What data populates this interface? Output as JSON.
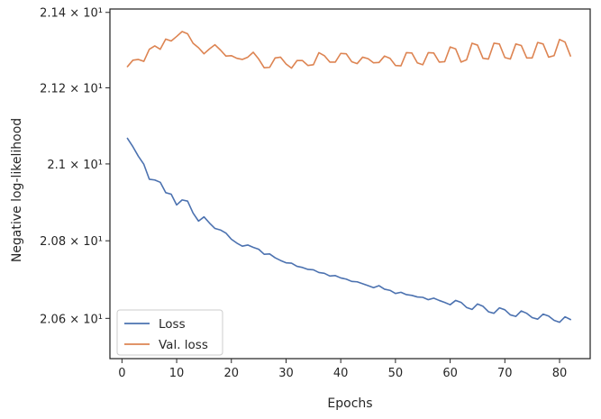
{
  "chart_data": {
    "type": "line",
    "xlabel": "Epochs",
    "ylabel": "Negative log-likelihood",
    "y_scale": "log",
    "xlim": [
      -2.2,
      85.6
    ],
    "ylim": [
      20.497,
      21.409
    ],
    "x_ticks": [
      0,
      10,
      20,
      30,
      40,
      50,
      60,
      70,
      80
    ],
    "y_ticks": [
      {
        "value": 20.6,
        "label": "2.06 × 10¹"
      },
      {
        "value": 20.8,
        "label": "2.08 × 10¹"
      },
      {
        "value": 21.0,
        "label": "2.1 × 10¹"
      },
      {
        "value": 21.2,
        "label": "2.12 × 10¹"
      },
      {
        "value": 21.4,
        "label": "2.14 × 10¹"
      }
    ],
    "grid": false,
    "legend_position": "lower-left",
    "x": [
      1,
      2,
      3,
      4,
      5,
      6,
      7,
      8,
      9,
      10,
      11,
      12,
      13,
      14,
      15,
      16,
      17,
      18,
      19,
      20,
      21,
      22,
      23,
      24,
      25,
      26,
      27,
      28,
      29,
      30,
      31,
      32,
      33,
      34,
      35,
      36,
      37,
      38,
      39,
      40,
      41,
      42,
      43,
      44,
      45,
      46,
      47,
      48,
      49,
      50,
      51,
      52,
      53,
      54,
      55,
      56,
      57,
      58,
      59,
      60,
      61,
      62,
      63,
      64,
      65,
      66,
      67,
      68,
      69,
      70,
      71,
      72,
      73,
      74,
      75,
      76,
      77,
      78,
      79,
      80,
      81,
      82
    ],
    "series": [
      {
        "name": "Loss",
        "color": "#4c72b0",
        "values": [
          21.067,
          21.045,
          21.02,
          20.999,
          20.96,
          20.958,
          20.952,
          20.925,
          20.921,
          20.893,
          20.906,
          20.903,
          20.872,
          20.851,
          20.862,
          20.846,
          20.832,
          20.828,
          20.82,
          20.804,
          20.794,
          20.786,
          20.789,
          20.783,
          20.778,
          20.765,
          20.766,
          20.756,
          20.749,
          20.743,
          20.742,
          20.734,
          20.731,
          20.726,
          20.725,
          20.718,
          20.716,
          20.709,
          20.71,
          20.704,
          20.701,
          20.695,
          20.694,
          20.689,
          20.684,
          20.679,
          20.684,
          20.675,
          20.672,
          20.664,
          20.667,
          20.661,
          20.659,
          20.655,
          20.654,
          20.648,
          20.652,
          20.646,
          20.641,
          20.635,
          20.646,
          20.641,
          20.628,
          20.623,
          20.637,
          20.631,
          20.617,
          20.613,
          20.627,
          20.622,
          20.609,
          20.605,
          20.619,
          20.613,
          20.602,
          20.598,
          20.611,
          20.606,
          20.595,
          20.59,
          20.604,
          20.597
        ]
      },
      {
        "name": "Val. loss",
        "color": "#dd8452",
        "values": [
          21.256,
          21.273,
          21.275,
          21.27,
          21.302,
          21.311,
          21.302,
          21.329,
          21.324,
          21.336,
          21.349,
          21.343,
          21.318,
          21.306,
          21.29,
          21.303,
          21.314,
          21.3,
          21.284,
          21.285,
          21.278,
          21.275,
          21.281,
          21.294,
          21.276,
          21.253,
          21.254,
          21.279,
          21.281,
          21.263,
          21.252,
          21.272,
          21.272,
          21.259,
          21.261,
          21.293,
          21.285,
          21.268,
          21.268,
          21.291,
          21.29,
          21.269,
          21.264,
          21.281,
          21.277,
          21.266,
          21.267,
          21.284,
          21.278,
          21.259,
          21.258,
          21.293,
          21.292,
          21.266,
          21.261,
          21.293,
          21.292,
          21.268,
          21.269,
          21.308,
          21.303,
          21.268,
          21.274,
          21.318,
          21.313,
          21.278,
          21.276,
          21.318,
          21.316,
          21.28,
          21.276,
          21.316,
          21.312,
          21.279,
          21.279,
          21.32,
          21.316,
          21.281,
          21.285,
          21.328,
          21.321,
          21.284
        ]
      }
    ]
  }
}
